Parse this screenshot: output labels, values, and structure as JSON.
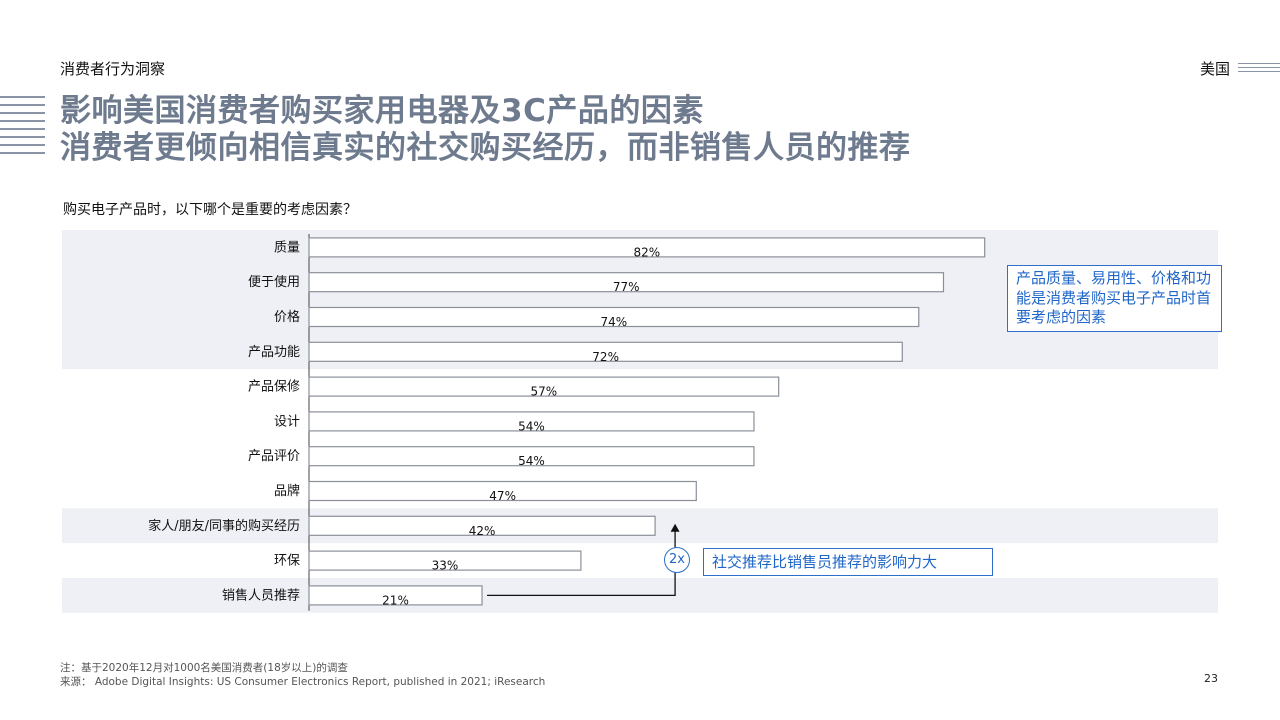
{
  "header": {
    "section": "消费者行为洞察",
    "region": "美国",
    "title_line1": "影响美国消费者购买家用电器及3C产品的因素",
    "title_line2": "消费者更倾向相信真实的社交购买经历，而非销售人员的推荐"
  },
  "colors": {
    "title": "#6e7a8d",
    "accent_blue": "#1f66c8",
    "band": "#eef0f5",
    "bar_border": "#8a8f99"
  },
  "chart_data": {
    "type": "bar",
    "orientation": "horizontal",
    "title": "购买电子产品时，以下哪个是重要的考虑因素？",
    "categories": [
      "质量",
      "便于使用",
      "价格",
      "产品功能",
      "产品保修",
      "设计",
      "产品评价",
      "品牌",
      "家人/朋友/同事的购买经历",
      "环保",
      "销售人员推荐"
    ],
    "values": [
      82,
      77,
      74,
      72,
      57,
      54,
      54,
      47,
      42,
      33,
      21
    ],
    "labels": [
      "82%",
      "77%",
      "74%",
      "72%",
      "57%",
      "54%",
      "54%",
      "47%",
      "42%",
      "33%",
      "21%"
    ],
    "highlighted": [
      "质量",
      "便于使用",
      "价格",
      "产品功能",
      "家人/朋友/同事的购买经历",
      "销售人员推荐"
    ],
    "xlim": [
      0,
      100
    ],
    "grid": false
  },
  "callouts": {
    "top": "产品质量、易用性、价格和功能是消费者购买电子产品时首要考虑的因素",
    "bottom": "社交推荐比销售员推荐的影响力大",
    "badge": "2x"
  },
  "footer": {
    "note": "注：基于2020年12月对1000名美国消费者(18岁以上)的调查",
    "source": "来源：  Adobe Digital Insights: US Consumer Electronics Report, published in 2021; iResearch",
    "page": "23"
  }
}
